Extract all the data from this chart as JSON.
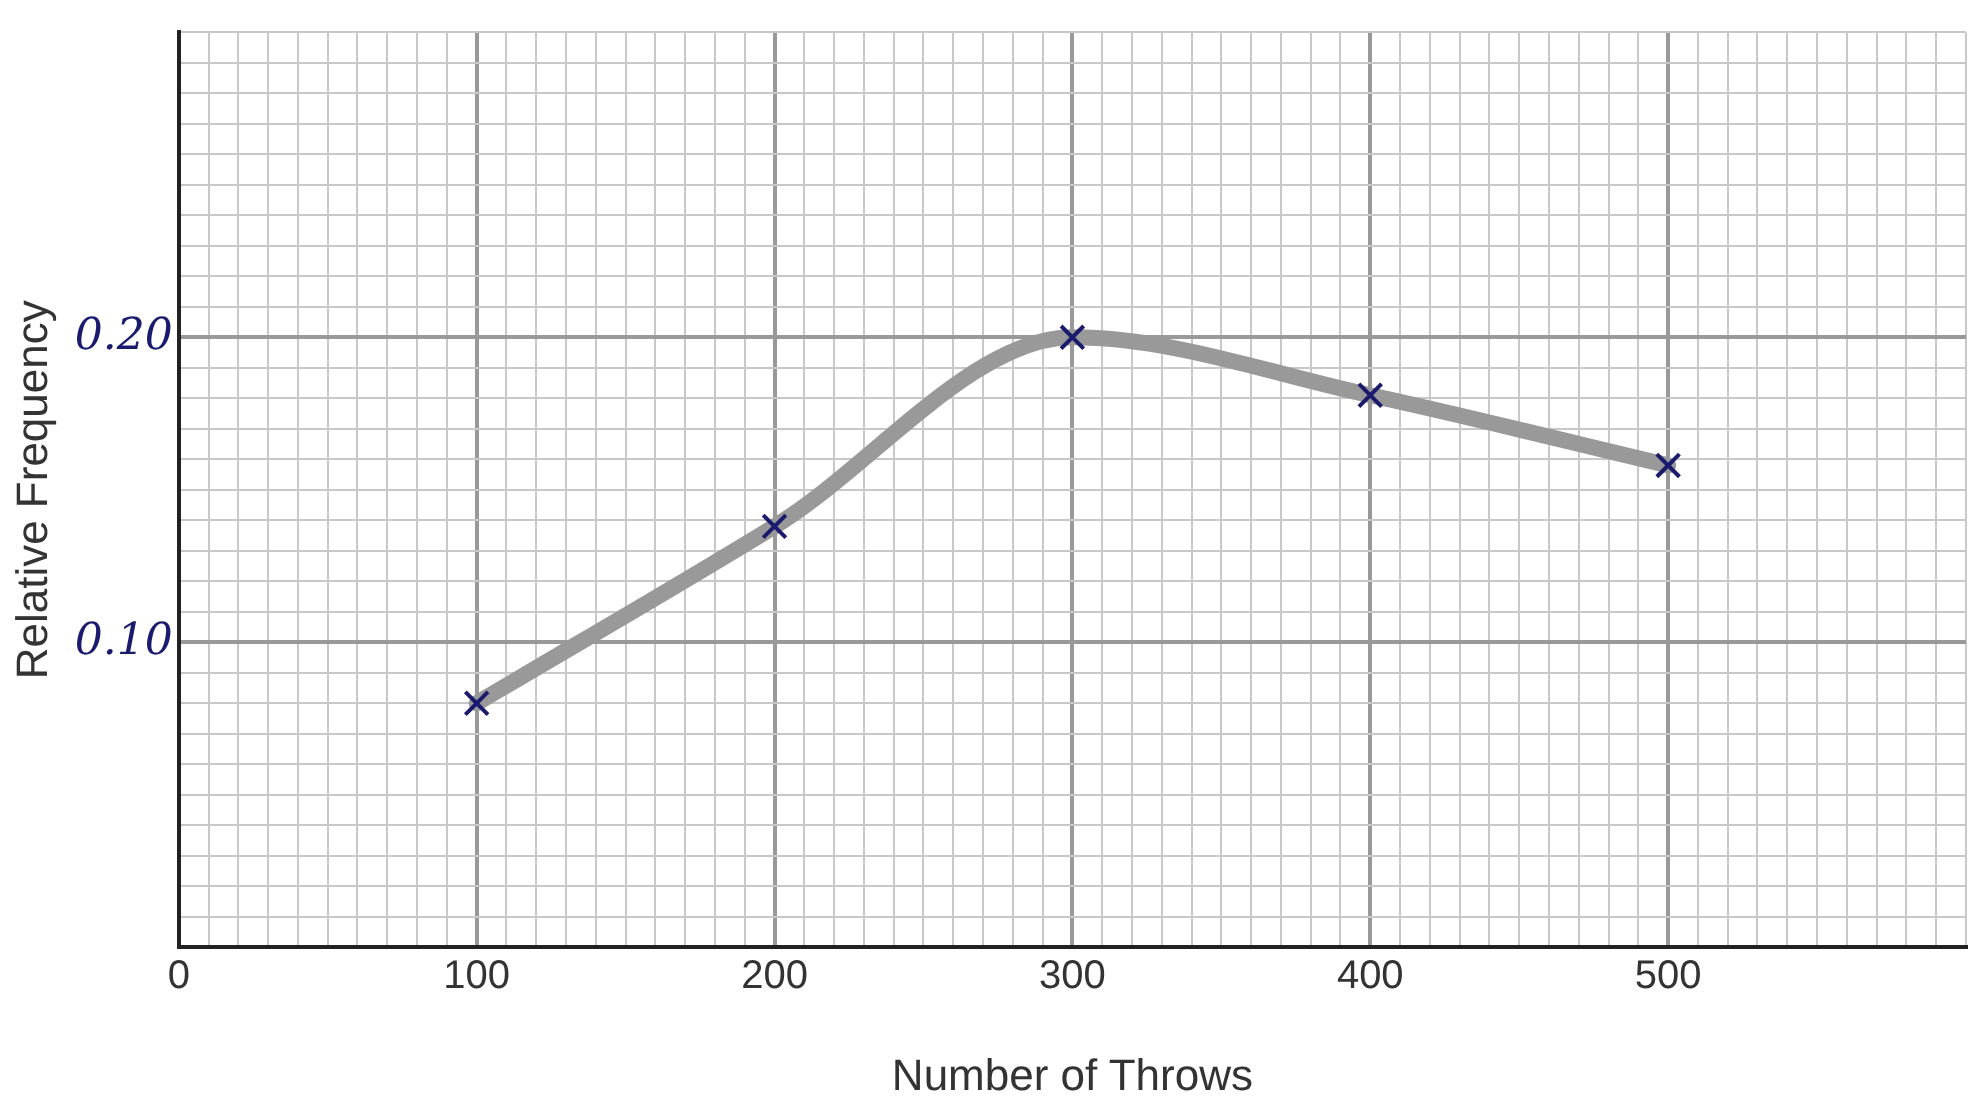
{
  "chart_data": {
    "type": "line",
    "xlabel": "Number of Throws",
    "ylabel": "Relative Frequency",
    "x": [
      100,
      200,
      300,
      400,
      500
    ],
    "series": [
      {
        "color": "#999999",
        "values": [
          0.08,
          0.138,
          0.2,
          0.181,
          0.158
        ]
      }
    ],
    "marker": "cross",
    "grid": true,
    "legend": false,
    "xlim": [
      0,
      600
    ],
    "xticks": [
      0,
      {
        "value": 10,
        "label": null
      },
      {
        "value": 20,
        "label": null
      },
      {
        "value": 30,
        "label": null
      },
      {
        "value": 40,
        "label": null
      },
      {
        "value": 50,
        "label": null
      },
      {
        "value": 60,
        "label": null
      },
      {
        "value": 70,
        "label": null
      },
      {
        "value": 80,
        "label": null
      },
      {
        "value": 90,
        "label": null
      },
      100,
      {
        "value": 110,
        "label": null
      },
      {
        "value": 120,
        "label": null
      },
      {
        "value": 130,
        "label": null
      },
      {
        "value": 140,
        "label": null
      },
      {
        "value": 150,
        "label": null
      },
      {
        "value": 160,
        "label": null
      },
      {
        "value": 170,
        "label": null
      },
      {
        "value": 180,
        "label": null
      },
      {
        "value": 190,
        "label": null
      },
      200,
      {
        "value": 210,
        "label": null
      },
      {
        "value": 220,
        "label": null
      },
      {
        "value": 230,
        "label": null
      },
      {
        "value": 240,
        "label": null
      },
      {
        "value": 250,
        "label": null
      },
      {
        "value": 260,
        "label": null
      },
      {
        "value": 270,
        "label": null
      },
      {
        "value": 280,
        "label": null
      },
      {
        "value": 290,
        "label": null
      },
      300,
      {
        "value": 310,
        "label": null
      },
      {
        "value": 320,
        "label": null
      },
      {
        "value": 330,
        "label": null
      },
      {
        "value": 340,
        "label": null
      },
      {
        "value": 350,
        "label": null
      },
      {
        "value": 360,
        "label": null
      },
      {
        "value": 370,
        "label": null
      },
      {
        "value": 380,
        "label": null
      },
      {
        "value": 390,
        "label": null
      },
      400,
      {
        "value": 410,
        "label": null
      },
      {
        "value": 420,
        "label": null
      },
      {
        "value": 430,
        "label": null
      },
      {
        "value": 440,
        "label": null
      },
      {
        "value": 450,
        "label": null
      },
      {
        "value": 460,
        "label": null
      },
      {
        "value": 470,
        "label": null
      },
      {
        "value": 480,
        "label": null
      },
      {
        "value": 490,
        "label": null
      },
      500,
      {
        "value": 510,
        "label": null
      },
      {
        "value": 520,
        "label": null
      },
      {
        "value": 530,
        "label": null
      },
      {
        "value": 540,
        "label": null
      },
      {
        "value": 550,
        "label": null
      },
      {
        "value": 560,
        "label": null
      },
      {
        "value": 570,
        "label": null
      },
      {
        "value": 580,
        "label": null
      },
      {
        "value": 590,
        "label": null
      },
      {
        "value": 600,
        "label": null
      }
    ],
    "ylim": [
      0,
      0.3
    ],
    "yticks": [
      {
        "value": 0,
        "label": null
      },
      {
        "value": 0.01,
        "label": null
      },
      {
        "value": 0.02,
        "label": null
      },
      {
        "value": 0.03,
        "label": null
      },
      {
        "value": 0.04,
        "label": null
      },
      {
        "value": 0.05,
        "label": null
      },
      {
        "value": 0.06,
        "label": null
      },
      {
        "value": 0.07,
        "label": null
      },
      {
        "value": 0.08,
        "label": null
      },
      {
        "value": 0.09,
        "label": null
      },
      {
        "value": 0.1,
        "label": "0.10"
      },
      {
        "value": 0.11,
        "label": null
      },
      {
        "value": 0.12,
        "label": null
      },
      {
        "value": 0.13,
        "label": null
      },
      {
        "value": 0.14,
        "label": null
      },
      {
        "value": 0.15,
        "label": null
      },
      {
        "value": 0.16,
        "label": null
      },
      {
        "value": 0.17,
        "label": null
      },
      {
        "value": 0.18,
        "label": null
      },
      {
        "value": 0.19,
        "label": null
      },
      {
        "value": 0.2,
        "label": "0.20"
      },
      {
        "value": 0.21,
        "label": null
      },
      {
        "value": 0.22,
        "label": null
      },
      {
        "value": 0.23,
        "label": null
      },
      {
        "value": 0.24,
        "label": null
      },
      {
        "value": 0.25,
        "label": null
      },
      {
        "value": 0.26,
        "label": null
      },
      {
        "value": 0.27,
        "label": null
      },
      {
        "value": 0.28,
        "label": null
      },
      {
        "value": 0.29,
        "label": null
      },
      {
        "value": 0.3,
        "label": null
      }
    ]
  }
}
